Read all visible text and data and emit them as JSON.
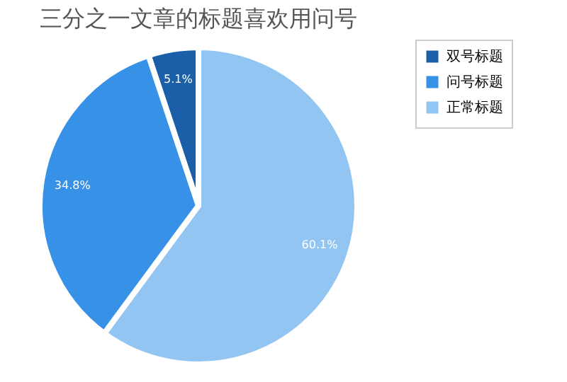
{
  "chart_data": {
    "type": "pie",
    "title": "三分之一文章的标题喜欢用问号",
    "categories": [
      "双号标题",
      "问号标题",
      "正常标题"
    ],
    "values": [
      5.1,
      34.8,
      60.1
    ],
    "colors": [
      "#1a5fa8",
      "#3791e6",
      "#93c5f2"
    ],
    "value_labels": [
      "5.1%",
      "34.8%",
      "60.1%"
    ],
    "legend": "top right"
  }
}
